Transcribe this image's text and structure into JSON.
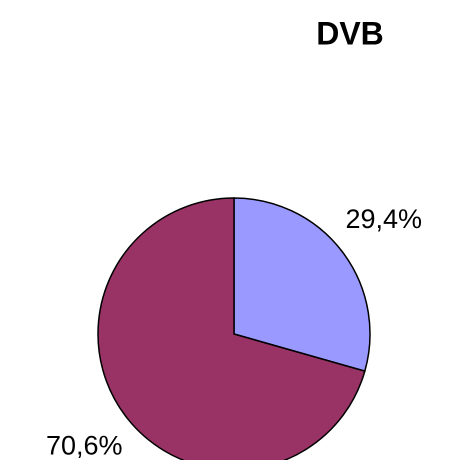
{
  "chart_data": {
    "type": "pie",
    "title": "DVB",
    "values": [
      29.4,
      70.6
    ],
    "value_labels": [
      "29,4%",
      "70,6%"
    ],
    "colors": [
      "#9999ff",
      "#993366"
    ]
  }
}
